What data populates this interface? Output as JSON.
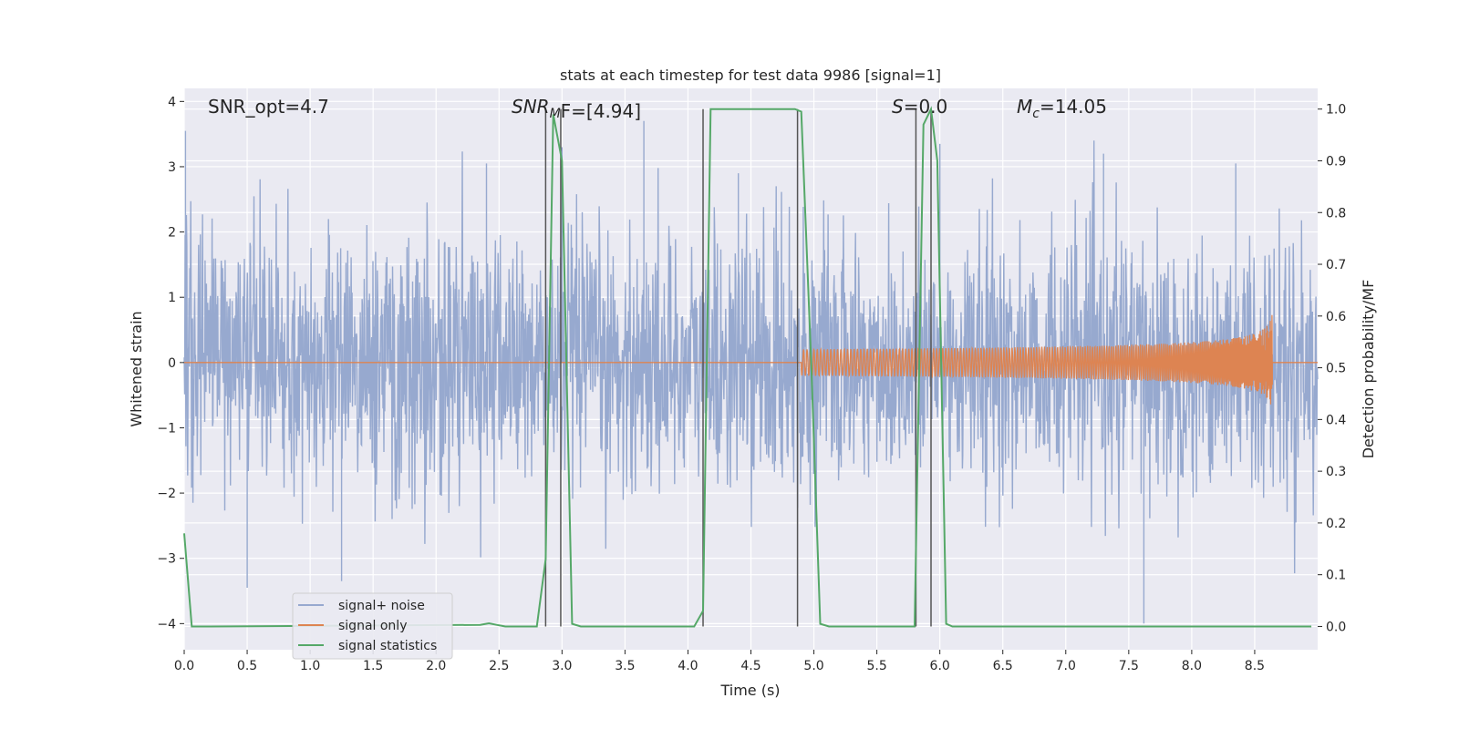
{
  "chart_data": {
    "type": "line",
    "title": "stats at each timestep for test data 9986 [signal=1]",
    "xlabel": "Time (s)",
    "ylabel": "Whitened strain",
    "ylabel_right": "Detection probability/MF",
    "xlim": [
      0.0,
      9.0
    ],
    "ylim": [
      -4.4,
      4.2
    ],
    "ylim_right": [
      -0.045,
      1.04
    ],
    "x_ticks": [
      0.0,
      0.5,
      1.0,
      1.5,
      2.0,
      2.5,
      3.0,
      3.5,
      4.0,
      4.5,
      5.0,
      5.5,
      6.0,
      6.5,
      7.0,
      7.5,
      8.0,
      8.5
    ],
    "x_tick_labels": [
      "0.0",
      "0.5",
      "1.0",
      "1.5",
      "2.0",
      "2.5",
      "3.0",
      "3.5",
      "4.0",
      "4.5",
      "5.0",
      "5.5",
      "6.0",
      "6.5",
      "7.0",
      "7.5",
      "8.0",
      "8.5"
    ],
    "y_ticks": [
      -4,
      -3,
      -2,
      -1,
      0,
      1,
      2,
      3,
      4
    ],
    "y_tick_labels": [
      "−4",
      "−3",
      "−2",
      "−1",
      "0",
      "1",
      "2",
      "3",
      "4"
    ],
    "y_ticks_right": [
      0.0,
      0.1,
      0.2,
      0.3,
      0.4,
      0.5,
      0.6,
      0.7,
      0.8,
      0.9,
      1.0
    ],
    "y_tick_labels_right": [
      "0.0",
      "0.1",
      "0.2",
      "0.3",
      "0.4",
      "0.5",
      "0.6",
      "0.7",
      "0.8",
      "0.9",
      "1.0"
    ],
    "grid": true,
    "legend_position": "lower-left",
    "annotations": {
      "snr_opt": "SNR_opt=4.7",
      "snr_mf_main": "SNR",
      "snr_mf_sub": "M",
      "snr_mf_tail": "F=[4.94]",
      "s_italic": "S",
      "s_tail": "=0.0",
      "mc_main": "M",
      "mc_sub": "c",
      "mc_tail": "=14.05"
    },
    "series": [
      {
        "name": "signal+ noise",
        "color": "#97a9cf",
        "kind": "noise",
        "x_range": [
          0.0,
          9.0
        ],
        "envelope_typical": [
          -1.6,
          1.8
        ],
        "extremes": [
          {
            "x": 0.01,
            "y": 3.55
          },
          {
            "x": 0.5,
            "y": -3.45
          },
          {
            "x": 1.25,
            "y": -3.35
          },
          {
            "x": 2.4,
            "y": 3.05
          },
          {
            "x": 3.0,
            "y": 3.3
          },
          {
            "x": 3.65,
            "y": 3.7
          },
          {
            "x": 4.4,
            "y": 2.9
          },
          {
            "x": 6.0,
            "y": 3.35
          },
          {
            "x": 7.3,
            "y": 3.2
          },
          {
            "x": 7.62,
            "y": -4.0
          },
          {
            "x": 8.35,
            "y": 3.05
          }
        ]
      },
      {
        "name": "signal only",
        "color": "#dd8452",
        "kind": "chirp",
        "start_x": 4.9,
        "end_x": 8.64,
        "final_amplitude": 0.75
      },
      {
        "name": "signal statistics",
        "color": "#55a868",
        "axis": "right",
        "x": [
          0.0,
          0.06,
          0.1,
          0.15,
          0.2,
          2.35,
          2.42,
          2.48,
          2.55,
          2.8,
          2.87,
          2.93,
          3.0,
          3.08,
          3.15,
          4.05,
          4.12,
          4.18,
          4.85,
          4.9,
          4.98,
          5.05,
          5.12,
          5.8,
          5.87,
          5.93,
          5.98,
          6.05,
          6.1,
          8.95
        ],
        "values": [
          0.18,
          0.0,
          0.0,
          0.0,
          0.0,
          0.003,
          0.006,
          0.003,
          0.0,
          0.0,
          0.13,
          0.99,
          0.9,
          0.005,
          0.0,
          0.0,
          0.03,
          1.0,
          1.0,
          0.995,
          0.5,
          0.005,
          0.0,
          0.0,
          0.97,
          1.0,
          0.9,
          0.005,
          0.0,
          0.0
        ]
      }
    ],
    "vertical_markers": [
      2.87,
      2.99,
      4.12,
      4.87,
      5.81,
      5.93
    ]
  }
}
